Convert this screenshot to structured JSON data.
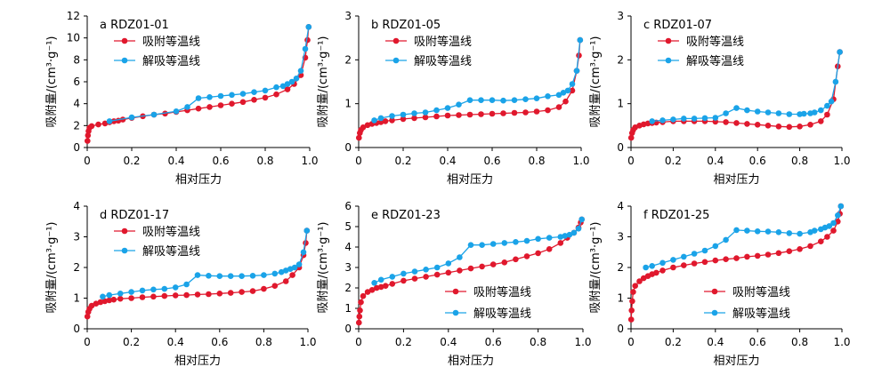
{
  "colors": {
    "adsorption": "#e0182d",
    "desorption": "#1aa3e8",
    "axis": "#000000"
  },
  "chart_data": [
    {
      "type": "line",
      "title": "a RDZ01-01",
      "xlabel": "相对压力",
      "ylabel": "吸附量/(cm³·g⁻¹)",
      "xlim": [
        0,
        1.0
      ],
      "ylim": [
        0,
        12
      ],
      "xticks": [
        0,
        0.2,
        0.4,
        0.6,
        0.8,
        1.0
      ],
      "yticks": [
        0,
        2,
        4,
        6,
        8,
        10,
        12
      ],
      "xtick_labels": [
        "0",
        "0.2",
        "0.4",
        "0.6",
        "0.8",
        "1.0"
      ],
      "ytick_labels": [
        "0",
        "2",
        "4",
        "6",
        "8",
        "10",
        "12"
      ],
      "legend_position": "top-left",
      "series": [
        {
          "name": "吸附等温线",
          "color": "#e0182d",
          "x": [
            0.001,
            0.003,
            0.006,
            0.01,
            0.02,
            0.05,
            0.08,
            0.1,
            0.12,
            0.14,
            0.16,
            0.2,
            0.25,
            0.3,
            0.35,
            0.4,
            0.45,
            0.5,
            0.55,
            0.6,
            0.65,
            0.7,
            0.75,
            0.8,
            0.85,
            0.9,
            0.93,
            0.96,
            0.98,
            0.99,
            0.995
          ],
          "y": [
            0.6,
            1.1,
            1.5,
            1.8,
            1.95,
            2.1,
            2.2,
            2.3,
            2.4,
            2.45,
            2.55,
            2.7,
            2.85,
            3.0,
            3.1,
            3.25,
            3.4,
            3.55,
            3.7,
            3.85,
            4.0,
            4.15,
            4.35,
            4.55,
            4.85,
            5.3,
            5.8,
            6.6,
            8.2,
            9.8,
            11.0
          ]
        },
        {
          "name": "解吸等温线",
          "color": "#1aa3e8",
          "x": [
            0.995,
            0.98,
            0.96,
            0.94,
            0.92,
            0.9,
            0.88,
            0.85,
            0.8,
            0.75,
            0.7,
            0.65,
            0.6,
            0.55,
            0.5,
            0.45,
            0.4,
            0.3,
            0.2,
            0.1
          ],
          "y": [
            11.0,
            9.0,
            7.0,
            6.3,
            6.0,
            5.8,
            5.6,
            5.5,
            5.2,
            5.05,
            4.9,
            4.8,
            4.7,
            4.6,
            4.5,
            3.7,
            3.3,
            3.0,
            2.75,
            2.4
          ]
        }
      ]
    },
    {
      "type": "line",
      "title": "b RDZ01-05",
      "xlabel": "相对压力",
      "ylabel": "吸附量/(cm³·g⁻¹)",
      "xlim": [
        0,
        1.0
      ],
      "ylim": [
        0,
        3
      ],
      "xticks": [
        0,
        0.2,
        0.4,
        0.6,
        0.8,
        1.0
      ],
      "yticks": [
        0,
        1,
        2,
        3
      ],
      "xtick_labels": [
        "0",
        "0.2",
        "0.4",
        "0.6",
        "0.8",
        "1.0"
      ],
      "ytick_labels": [
        "0",
        "1",
        "2",
        "3"
      ],
      "legend_position": "top-left",
      "series": [
        {
          "name": "吸附等温线",
          "color": "#e0182d",
          "x": [
            0.001,
            0.005,
            0.01,
            0.02,
            0.04,
            0.06,
            0.08,
            0.1,
            0.12,
            0.15,
            0.2,
            0.25,
            0.3,
            0.35,
            0.4,
            0.45,
            0.5,
            0.55,
            0.6,
            0.65,
            0.7,
            0.75,
            0.8,
            0.85,
            0.9,
            0.93,
            0.96,
            0.98,
            0.99,
            0.995
          ],
          "y": [
            0.22,
            0.33,
            0.4,
            0.46,
            0.51,
            0.54,
            0.56,
            0.58,
            0.6,
            0.62,
            0.65,
            0.67,
            0.69,
            0.71,
            0.73,
            0.74,
            0.75,
            0.76,
            0.77,
            0.78,
            0.79,
            0.8,
            0.82,
            0.85,
            0.92,
            1.05,
            1.3,
            1.75,
            2.1,
            2.45
          ]
        },
        {
          "name": "解吸等温线",
          "color": "#1aa3e8",
          "x": [
            0.995,
            0.98,
            0.96,
            0.94,
            0.92,
            0.9,
            0.85,
            0.8,
            0.75,
            0.7,
            0.65,
            0.6,
            0.55,
            0.5,
            0.45,
            0.4,
            0.35,
            0.3,
            0.25,
            0.2,
            0.15,
            0.1,
            0.07
          ],
          "y": [
            2.45,
            1.75,
            1.45,
            1.3,
            1.25,
            1.2,
            1.17,
            1.12,
            1.1,
            1.08,
            1.07,
            1.08,
            1.08,
            1.08,
            0.98,
            0.9,
            0.85,
            0.8,
            0.78,
            0.75,
            0.72,
            0.67,
            0.62
          ]
        }
      ]
    },
    {
      "type": "line",
      "title": "c RDZ01-07",
      "xlabel": "相对压力",
      "ylabel": "吸附量/(cm³·g⁻¹)",
      "xlim": [
        0,
        1.0
      ],
      "ylim": [
        0,
        3
      ],
      "xticks": [
        0,
        0.2,
        0.4,
        0.6,
        0.8,
        1.0
      ],
      "yticks": [
        0,
        1,
        2,
        3
      ],
      "xtick_labels": [
        "0",
        "0.2",
        "0.4",
        "0.6",
        "0.8",
        "1.0"
      ],
      "ytick_labels": [
        "0",
        "1",
        "2",
        "3"
      ],
      "legend_position": "top-left",
      "series": [
        {
          "name": "吸附等温线",
          "color": "#e0182d",
          "x": [
            0.001,
            0.005,
            0.01,
            0.02,
            0.04,
            0.06,
            0.08,
            0.1,
            0.12,
            0.15,
            0.2,
            0.25,
            0.3,
            0.35,
            0.4,
            0.45,
            0.5,
            0.55,
            0.6,
            0.65,
            0.7,
            0.75,
            0.8,
            0.85,
            0.9,
            0.93,
            0.96,
            0.98,
            0.99
          ],
          "y": [
            0.22,
            0.33,
            0.4,
            0.46,
            0.5,
            0.53,
            0.55,
            0.56,
            0.57,
            0.58,
            0.6,
            0.6,
            0.6,
            0.6,
            0.59,
            0.58,
            0.56,
            0.54,
            0.52,
            0.5,
            0.48,
            0.47,
            0.48,
            0.52,
            0.6,
            0.75,
            1.1,
            1.85,
            2.18
          ]
        },
        {
          "name": "解吸等温线",
          "color": "#1aa3e8",
          "x": [
            0.99,
            0.97,
            0.95,
            0.93,
            0.9,
            0.87,
            0.85,
            0.82,
            0.8,
            0.75,
            0.7,
            0.65,
            0.6,
            0.55,
            0.5,
            0.45,
            0.4,
            0.35,
            0.3,
            0.25,
            0.2,
            0.15,
            0.1
          ],
          "y": [
            2.18,
            1.5,
            1.05,
            0.95,
            0.85,
            0.8,
            0.78,
            0.77,
            0.76,
            0.76,
            0.78,
            0.8,
            0.82,
            0.85,
            0.9,
            0.78,
            0.68,
            0.67,
            0.66,
            0.66,
            0.64,
            0.62,
            0.6
          ]
        }
      ]
    },
    {
      "type": "line",
      "title": "d RDZ01-17",
      "xlabel": "相对压力",
      "ylabel": "吸附量/(cm³·g⁻¹)",
      "xlim": [
        0,
        1.0
      ],
      "ylim": [
        0,
        4
      ],
      "xticks": [
        0,
        0.2,
        0.4,
        0.6,
        0.8,
        1.0
      ],
      "yticks": [
        0,
        1,
        2,
        3,
        4
      ],
      "xtick_labels": [
        "0",
        "0.2",
        "0.4",
        "0.6",
        "0.8",
        "1.0"
      ],
      "ytick_labels": [
        "0",
        "1",
        "2",
        "3",
        "4"
      ],
      "legend_position": "top-left",
      "series": [
        {
          "name": "吸附等温线",
          "color": "#e0182d",
          "x": [
            0.001,
            0.005,
            0.01,
            0.02,
            0.04,
            0.06,
            0.08,
            0.1,
            0.12,
            0.15,
            0.2,
            0.25,
            0.3,
            0.35,
            0.4,
            0.45,
            0.5,
            0.55,
            0.6,
            0.65,
            0.7,
            0.75,
            0.8,
            0.85,
            0.9,
            0.93,
            0.96,
            0.98,
            0.99,
            0.995
          ],
          "y": [
            0.4,
            0.55,
            0.65,
            0.75,
            0.82,
            0.87,
            0.9,
            0.93,
            0.95,
            0.98,
            1.0,
            1.03,
            1.05,
            1.07,
            1.09,
            1.1,
            1.12,
            1.13,
            1.15,
            1.17,
            1.2,
            1.23,
            1.3,
            1.4,
            1.55,
            1.75,
            2.0,
            2.4,
            2.8,
            3.2
          ]
        },
        {
          "name": "解吸等温线",
          "color": "#1aa3e8",
          "x": [
            0.995,
            0.98,
            0.96,
            0.94,
            0.92,
            0.9,
            0.88,
            0.85,
            0.8,
            0.75,
            0.7,
            0.65,
            0.6,
            0.55,
            0.5,
            0.45,
            0.4,
            0.35,
            0.3,
            0.25,
            0.2,
            0.15,
            0.1,
            0.07
          ],
          "y": [
            3.2,
            2.5,
            2.1,
            2.0,
            1.95,
            1.9,
            1.85,
            1.8,
            1.75,
            1.73,
            1.72,
            1.72,
            1.72,
            1.73,
            1.75,
            1.45,
            1.35,
            1.3,
            1.28,
            1.25,
            1.2,
            1.15,
            1.1,
            1.05
          ]
        }
      ]
    },
    {
      "type": "line",
      "title": "e RDZ01-23",
      "xlabel": "相对压力",
      "ylabel": "吸附量/(cm³·g⁻¹)",
      "xlim": [
        0,
        1.0
      ],
      "ylim": [
        0,
        6
      ],
      "xticks": [
        0,
        0.2,
        0.4,
        0.6,
        0.8,
        1.0
      ],
      "yticks": [
        0,
        1,
        2,
        3,
        4,
        5,
        6
      ],
      "xtick_labels": [
        "0",
        "0.2",
        "0.4",
        "0.6",
        "0.8",
        "1.0"
      ],
      "ytick_labels": [
        "0",
        "1",
        "2",
        "3",
        "4",
        "5",
        "6"
      ],
      "legend_position": "bottom-right",
      "series": [
        {
          "name": "吸附等温线",
          "color": "#e0182d",
          "x": [
            0.001,
            0.003,
            0.006,
            0.01,
            0.02,
            0.04,
            0.06,
            0.08,
            0.1,
            0.12,
            0.15,
            0.2,
            0.25,
            0.3,
            0.35,
            0.4,
            0.45,
            0.5,
            0.55,
            0.6,
            0.65,
            0.7,
            0.75,
            0.8,
            0.85,
            0.9,
            0.93,
            0.96,
            0.98,
            0.99,
            0.995
          ],
          "y": [
            0.3,
            0.6,
            0.9,
            1.3,
            1.6,
            1.8,
            1.9,
            2.0,
            2.05,
            2.1,
            2.2,
            2.35,
            2.45,
            2.55,
            2.65,
            2.75,
            2.85,
            2.95,
            3.05,
            3.15,
            3.25,
            3.4,
            3.55,
            3.7,
            3.9,
            4.2,
            4.45,
            4.7,
            4.95,
            5.2,
            5.35
          ]
        },
        {
          "name": "解吸等温线",
          "color": "#1aa3e8",
          "x": [
            0.995,
            0.98,
            0.96,
            0.94,
            0.92,
            0.9,
            0.85,
            0.8,
            0.75,
            0.7,
            0.65,
            0.6,
            0.55,
            0.5,
            0.45,
            0.4,
            0.35,
            0.3,
            0.25,
            0.2,
            0.15,
            0.1,
            0.07
          ],
          "y": [
            5.35,
            4.9,
            4.7,
            4.6,
            4.55,
            4.5,
            4.45,
            4.4,
            4.3,
            4.25,
            4.2,
            4.15,
            4.1,
            4.1,
            3.5,
            3.2,
            3.0,
            2.9,
            2.8,
            2.7,
            2.55,
            2.4,
            2.25
          ]
        }
      ]
    },
    {
      "type": "line",
      "title": "f RDZ01-25",
      "xlabel": "相对压力",
      "ylabel": "吸附量/(cm³·g⁻¹)",
      "xlim": [
        0,
        1.0
      ],
      "ylim": [
        0,
        4
      ],
      "xticks": [
        0,
        0.2,
        0.4,
        0.6,
        0.8,
        1.0
      ],
      "yticks": [
        0,
        1,
        2,
        3,
        4
      ],
      "xtick_labels": [
        "0",
        "0.2",
        "0.4",
        "0.6",
        "0.8",
        "1.0"
      ],
      "ytick_labels": [
        "0",
        "1",
        "2",
        "3",
        "4"
      ],
      "legend_position": "bottom-right",
      "series": [
        {
          "name": "吸附等温线",
          "color": "#e0182d",
          "x": [
            0.001,
            0.003,
            0.006,
            0.01,
            0.02,
            0.04,
            0.06,
            0.08,
            0.1,
            0.12,
            0.15,
            0.2,
            0.25,
            0.3,
            0.35,
            0.4,
            0.45,
            0.5,
            0.55,
            0.6,
            0.65,
            0.7,
            0.75,
            0.8,
            0.85,
            0.9,
            0.93,
            0.96,
            0.98,
            0.99,
            0.995
          ],
          "y": [
            0.3,
            0.6,
            0.9,
            1.2,
            1.4,
            1.55,
            1.65,
            1.72,
            1.78,
            1.83,
            1.9,
            2.0,
            2.07,
            2.13,
            2.18,
            2.23,
            2.27,
            2.3,
            2.35,
            2.38,
            2.42,
            2.47,
            2.53,
            2.6,
            2.7,
            2.85,
            3.0,
            3.2,
            3.5,
            3.75,
            4.0
          ]
        },
        {
          "name": "解吸等温线",
          "color": "#1aa3e8",
          "x": [
            0.995,
            0.98,
            0.96,
            0.94,
            0.92,
            0.9,
            0.87,
            0.85,
            0.8,
            0.75,
            0.7,
            0.65,
            0.6,
            0.55,
            0.5,
            0.45,
            0.4,
            0.35,
            0.3,
            0.25,
            0.2,
            0.15,
            0.1,
            0.07
          ],
          "y": [
            4.0,
            3.7,
            3.45,
            3.35,
            3.3,
            3.25,
            3.2,
            3.15,
            3.1,
            3.12,
            3.15,
            3.17,
            3.18,
            3.2,
            3.22,
            2.9,
            2.7,
            2.55,
            2.45,
            2.35,
            2.25,
            2.15,
            2.05,
            2.0
          ]
        }
      ]
    }
  ]
}
